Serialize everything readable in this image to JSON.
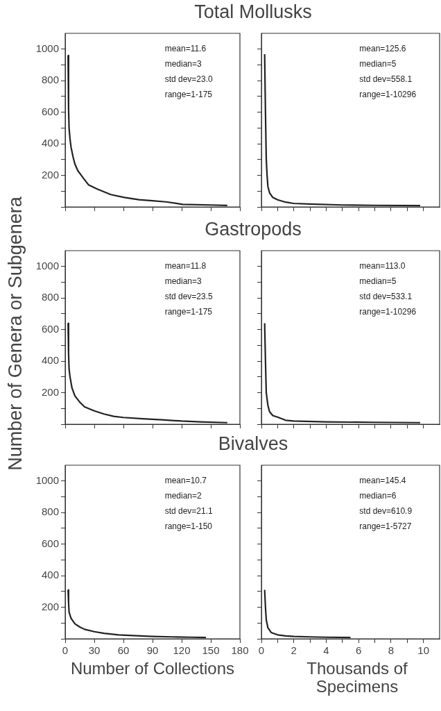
{
  "chart_data": [
    {
      "type": "line",
      "title": "Total Mollusks",
      "ylabel": "Number of Genera or Subgenera",
      "annotations": [
        "mean=11.6",
        "median=3",
        "std dev=23.0",
        "range=1-175"
      ],
      "color": "#222222",
      "marker": "none",
      "tick_labels": "y",
      "x": [
        3,
        3.5,
        4,
        5,
        6,
        8,
        10,
        13,
        16,
        19,
        24,
        33,
        47,
        61,
        76,
        90,
        104,
        121,
        150,
        167
      ],
      "values": [
        960,
        620,
        500,
        430,
        380,
        320,
        272,
        230,
        205,
        180,
        140,
        113,
        78,
        60,
        46,
        39,
        32,
        16,
        12,
        9
      ],
      "xlim": [
        0,
        180
      ],
      "xticks": [
        {
          "value": 0,
          "label": null
        },
        {
          "value": 30,
          "label": null
        },
        {
          "value": 60,
          "label": null
        },
        {
          "value": 90,
          "label": null
        },
        {
          "value": 120,
          "label": null
        },
        {
          "value": 150,
          "label": null
        },
        {
          "value": 180,
          "label": null
        }
      ],
      "ylim": [
        0,
        1100
      ],
      "yticks": [
        {
          "value": 0,
          "label": null
        },
        {
          "value": 100,
          "label": null
        },
        200,
        {
          "value": 300,
          "label": null
        },
        400,
        {
          "value": 500,
          "label": null
        },
        600,
        {
          "value": 700,
          "label": null
        },
        800,
        {
          "value": 900,
          "label": null
        },
        1000
      ]
    },
    {
      "type": "line",
      "annotations": [
        "mean=125.6",
        "median=5",
        "std dev=558.1",
        "range=1-10296"
      ],
      "color": "#222222",
      "marker": "none",
      "tick_labels": false,
      "x": [
        0.2,
        0.25,
        0.3,
        0.35,
        0.4,
        0.5,
        0.7,
        1,
        1.5,
        2,
        3,
        5,
        7,
        9.8
      ],
      "values": [
        968,
        600,
        300,
        200,
        130,
        90,
        60,
        45,
        30,
        22,
        18,
        12,
        10,
        8
      ],
      "xlim": [
        0,
        11
      ],
      "xticks": [
        {
          "value": 0,
          "label": null
        },
        {
          "value": 1,
          "label": null
        },
        {
          "value": 2,
          "label": null
        },
        {
          "value": 3,
          "label": null
        },
        {
          "value": 4,
          "label": null
        },
        {
          "value": 5,
          "label": null
        },
        {
          "value": 6,
          "label": null
        },
        {
          "value": 7,
          "label": null
        },
        {
          "value": 8,
          "label": null
        },
        {
          "value": 9,
          "label": null
        },
        {
          "value": 10,
          "label": null
        }
      ],
      "ylim": [
        0,
        1100
      ],
      "yticks": [
        {
          "value": 0,
          "label": null
        },
        {
          "value": 100,
          "label": null
        },
        {
          "value": 200,
          "label": null
        },
        {
          "value": 300,
          "label": null
        },
        {
          "value": 400,
          "label": null
        },
        {
          "value": 500,
          "label": null
        },
        {
          "value": 600,
          "label": null
        },
        {
          "value": 700,
          "label": null
        },
        {
          "value": 800,
          "label": null
        },
        {
          "value": 900,
          "label": null
        },
        {
          "value": 1000,
          "label": null
        }
      ]
    },
    {
      "type": "line",
      "title": "Gastropods",
      "annotations": [
        "mean=11.8",
        "median=3",
        "std dev=23.5",
        "range=1-175"
      ],
      "color": "#222222",
      "marker": "none",
      "tick_labels": "y",
      "x": [
        3,
        3.5,
        4,
        5,
        7,
        10,
        15,
        20,
        30,
        40,
        50,
        60,
        80,
        100,
        120,
        140,
        167
      ],
      "values": [
        640,
        450,
        350,
        300,
        230,
        180,
        140,
        110,
        85,
        65,
        50,
        43,
        35,
        28,
        20,
        15,
        10
      ],
      "xlim": [
        0,
        180
      ],
      "xticks": [
        {
          "value": 0,
          "label": null
        },
        {
          "value": 30,
          "label": null
        },
        {
          "value": 60,
          "label": null
        },
        {
          "value": 90,
          "label": null
        },
        {
          "value": 120,
          "label": null
        },
        {
          "value": 150,
          "label": null
        },
        {
          "value": 180,
          "label": null
        }
      ],
      "ylim": [
        0,
        1100
      ],
      "yticks": [
        {
          "value": 0,
          "label": null
        },
        {
          "value": 100,
          "label": null
        },
        200,
        {
          "value": 300,
          "label": null
        },
        400,
        {
          "value": 500,
          "label": null
        },
        600,
        {
          "value": 700,
          "label": null
        },
        800,
        {
          "value": 900,
          "label": null
        },
        1000
      ]
    },
    {
      "type": "line",
      "annotations": [
        "mean=113.0",
        "median=5",
        "std dev=533.1",
        "range=1-10296"
      ],
      "color": "#222222",
      "marker": "none",
      "tick_labels": false,
      "x": [
        0.2,
        0.25,
        0.3,
        0.4,
        0.5,
        0.7,
        1,
        1.5,
        2,
        4,
        7,
        9.8
      ],
      "values": [
        640,
        400,
        200,
        120,
        80,
        55,
        45,
        25,
        20,
        15,
        12,
        10
      ],
      "xlim": [
        0,
        11
      ],
      "xticks": [
        {
          "value": 0,
          "label": null
        },
        {
          "value": 1,
          "label": null
        },
        {
          "value": 2,
          "label": null
        },
        {
          "value": 3,
          "label": null
        },
        {
          "value": 4,
          "label": null
        },
        {
          "value": 5,
          "label": null
        },
        {
          "value": 6,
          "label": null
        },
        {
          "value": 7,
          "label": null
        },
        {
          "value": 8,
          "label": null
        },
        {
          "value": 9,
          "label": null
        },
        {
          "value": 10,
          "label": null
        }
      ],
      "ylim": [
        0,
        1100
      ],
      "yticks": [
        {
          "value": 0,
          "label": null
        },
        {
          "value": 100,
          "label": null
        },
        {
          "value": 200,
          "label": null
        },
        {
          "value": 300,
          "label": null
        },
        {
          "value": 400,
          "label": null
        },
        {
          "value": 500,
          "label": null
        },
        {
          "value": 600,
          "label": null
        },
        {
          "value": 700,
          "label": null
        },
        {
          "value": 800,
          "label": null
        },
        {
          "value": 900,
          "label": null
        },
        {
          "value": 1000,
          "label": null
        }
      ]
    },
    {
      "type": "line",
      "title": "Bivalves",
      "xlabel": "Number of Collections",
      "annotations": [
        "mean=10.7",
        "median=2",
        "std dev=21.1",
        "range=1-150"
      ],
      "color": "#222222",
      "marker": "none",
      "x": [
        3,
        3.5,
        4,
        6,
        10,
        15,
        20,
        30,
        40,
        55,
        70,
        90,
        110,
        130,
        145
      ],
      "values": [
        310,
        230,
        170,
        130,
        95,
        75,
        60,
        45,
        35,
        25,
        20,
        15,
        12,
        10,
        8
      ],
      "xlim": [
        0,
        180
      ],
      "xticks": [
        0,
        30,
        60,
        90,
        120,
        150,
        180
      ],
      "ylim": [
        0,
        1100
      ],
      "yticks": [
        {
          "value": 0,
          "label": null
        },
        {
          "value": 100,
          "label": null
        },
        200,
        {
          "value": 300,
          "label": null
        },
        400,
        {
          "value": 500,
          "label": null
        },
        600,
        {
          "value": 700,
          "label": null
        },
        800,
        {
          "value": 900,
          "label": null
        },
        1000
      ]
    },
    {
      "type": "line",
      "xlabel": "Thousands of Specimens",
      "annotations": [
        "mean=145.4",
        "median=6",
        "std dev=610.9",
        "range=1-5727"
      ],
      "color": "#222222",
      "marker": "none",
      "tick_labels": "x",
      "x": [
        0.2,
        0.25,
        0.3,
        0.4,
        0.6,
        1,
        1.5,
        2,
        3,
        4,
        5.5
      ],
      "values": [
        310,
        200,
        120,
        70,
        40,
        25,
        18,
        15,
        12,
        10,
        8
      ],
      "xlim": [
        0,
        11
      ],
      "xticks": [
        0,
        {
          "value": 1,
          "label": null
        },
        2,
        {
          "value": 3,
          "label": null
        },
        4,
        {
          "value": 5,
          "label": null
        },
        6,
        {
          "value": 7,
          "label": null
        },
        8,
        {
          "value": 9,
          "label": null
        },
        10
      ],
      "ylim": [
        0,
        1100
      ],
      "yticks": [
        {
          "value": 0,
          "label": null
        },
        {
          "value": 100,
          "label": null
        },
        {
          "value": 200,
          "label": null
        },
        {
          "value": 300,
          "label": null
        },
        {
          "value": 400,
          "label": null
        },
        {
          "value": 500,
          "label": null
        },
        {
          "value": 600,
          "label": null
        },
        {
          "value": 700,
          "label": null
        },
        {
          "value": 800,
          "label": null
        },
        {
          "value": 900,
          "label": null
        },
        {
          "value": 1000,
          "label": null
        }
      ]
    }
  ]
}
